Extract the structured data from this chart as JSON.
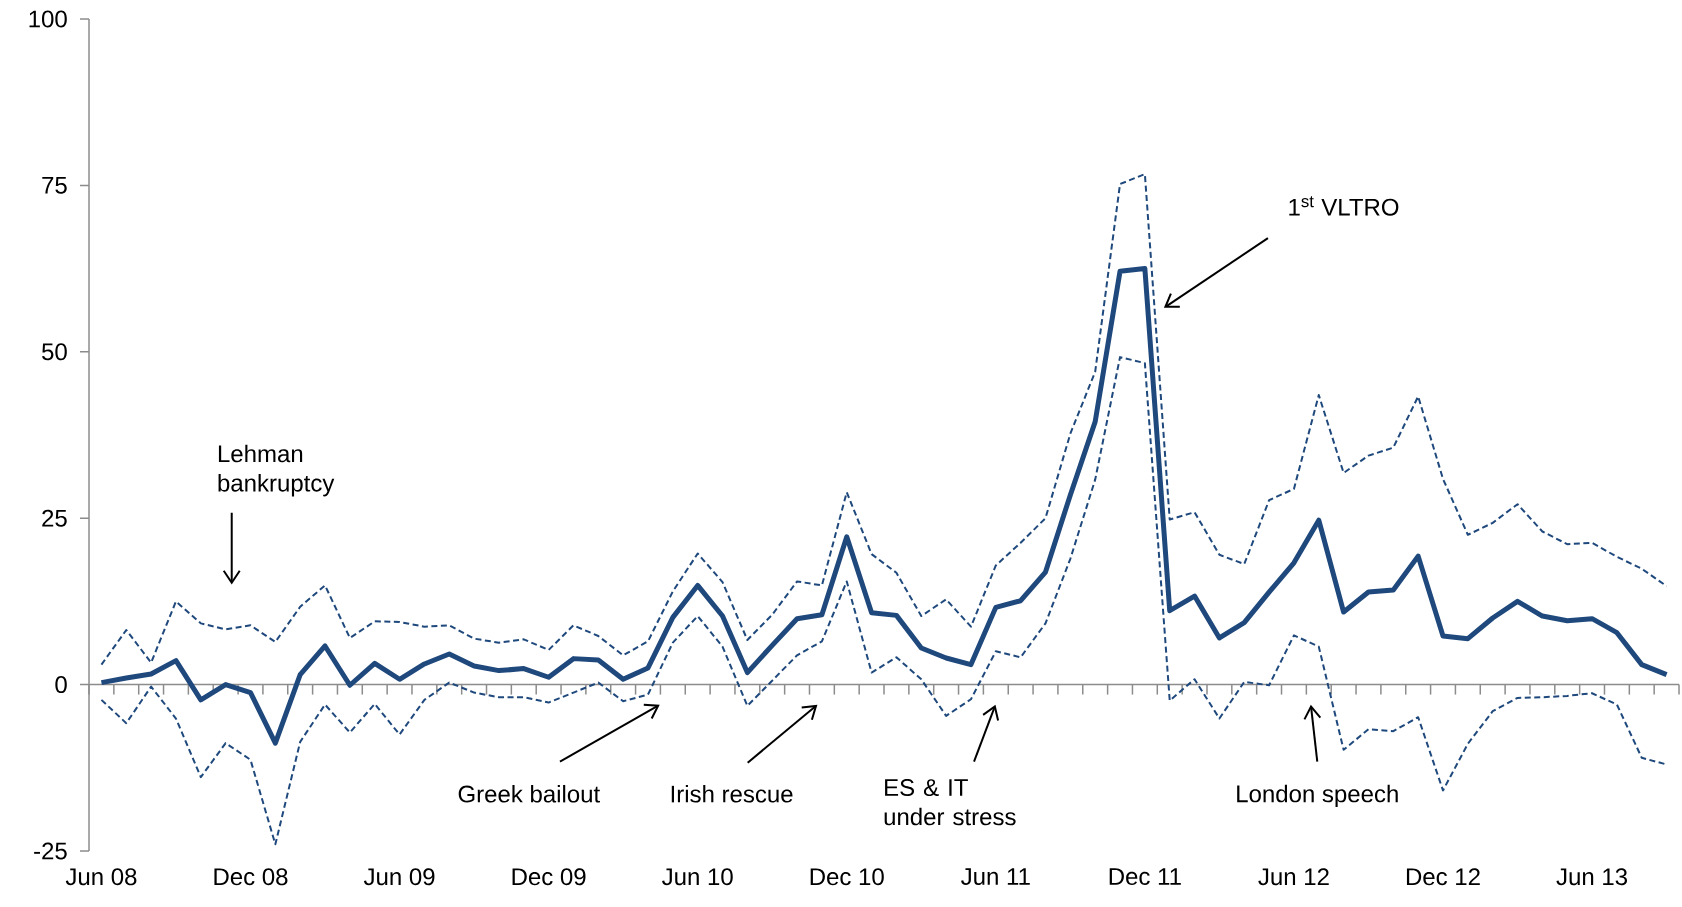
{
  "chart_data": {
    "type": "line",
    "x": [
      "2008-06",
      "2008-07",
      "2008-08",
      "2008-09",
      "2008-10",
      "2008-11",
      "2008-12",
      "2009-01",
      "2009-02",
      "2009-03",
      "2009-04",
      "2009-05",
      "2009-06",
      "2009-07",
      "2009-08",
      "2009-09",
      "2009-10",
      "2009-11",
      "2009-12",
      "2010-01",
      "2010-02",
      "2010-03",
      "2010-04",
      "2010-05",
      "2010-06",
      "2010-07",
      "2010-08",
      "2010-09",
      "2010-10",
      "2010-11",
      "2010-12",
      "2011-01",
      "2011-02",
      "2011-03",
      "2011-04",
      "2011-05",
      "2011-06",
      "2011-07",
      "2011-08",
      "2011-09",
      "2011-10",
      "2011-11",
      "2011-12",
      "2012-01",
      "2012-02",
      "2012-03",
      "2012-04",
      "2012-05",
      "2012-06",
      "2012-07",
      "2012-08",
      "2012-09",
      "2012-10",
      "2012-11",
      "2012-12",
      "2013-01",
      "2013-02",
      "2013-03",
      "2013-04",
      "2013-05",
      "2013-06",
      "2013-07",
      "2013-08",
      "2013-09"
    ],
    "series": [
      {
        "color": "#1f497d",
        "line_style": "dashed",
        "values": [
          3,
          8.2,
          3.3,
          12.5,
          9.2,
          8.3,
          8.9,
          6.4,
          11.7,
          14.9,
          7,
          9.5,
          9.4,
          8.7,
          8.9,
          6.9,
          6.3,
          6.8,
          5.2,
          8.9,
          7.3,
          4.4,
          6.5,
          14,
          19.7,
          15.4,
          6.7,
          10.5,
          15.5,
          14.9,
          28.9,
          19.6,
          16.8,
          10.3,
          12.8,
          8.7,
          17.9,
          21.3,
          25,
          37.7,
          47,
          75.2,
          76.7,
          24.8,
          25.9,
          19.5,
          18.1,
          27.7,
          29.4,
          43.5,
          31.8,
          34.4,
          35.6,
          43.3,
          30.9,
          22.5,
          24.3,
          27.1,
          23,
          21.1,
          21.3,
          19.2,
          17.4,
          14.8
        ]
      },
      {
        "color": "#1f497d",
        "line_style": "dashed",
        "values": [
          -2.3,
          -5.8,
          -0.3,
          -5.1,
          -13.9,
          -8.8,
          -11.3,
          -24,
          -8.6,
          -3,
          -7.2,
          -2.9,
          -7.5,
          -2.3,
          0.3,
          -1.2,
          -1.9,
          -1.9,
          -2.7,
          -1.2,
          0.3,
          -2.5,
          -1.5,
          6.3,
          10.3,
          5.7,
          -3.2,
          0.6,
          4.4,
          6.5,
          15.5,
          1.8,
          4.1,
          0.8,
          -4.7,
          -2.2,
          5,
          4.1,
          9.2,
          18.9,
          30.8,
          49.2,
          48.3,
          -2.4,
          0.8,
          -5.1,
          0.4,
          -0.1,
          7.4,
          5.7,
          -9.8,
          -6.7,
          -7,
          -4.9,
          -15.9,
          -8.9,
          -4,
          -2,
          -1.9,
          -1.7,
          -1.3,
          -3,
          -11,
          -12
        ]
      },
      {
        "color": "#1f497d",
        "line_style": "solid",
        "values": [
          0.3,
          1,
          1.6,
          3.6,
          -2.3,
          0,
          -1.2,
          -8.8,
          1.5,
          5.8,
          -0.1,
          3.2,
          0.8,
          3.1,
          4.6,
          2.8,
          2.1,
          2.4,
          1.1,
          3.9,
          3.7,
          0.8,
          2.5,
          10.1,
          14.9,
          10.3,
          1.8,
          5.9,
          9.9,
          10.5,
          22.2,
          10.8,
          10.4,
          5.5,
          4,
          3,
          11.6,
          12.6,
          16.9,
          28.5,
          39.5,
          62.1,
          62.5,
          11.1,
          13.3,
          7,
          9.3,
          13.9,
          18.3,
          24.7,
          10.9,
          13.9,
          14.2,
          19.3,
          7.3,
          6.9,
          10,
          12.5,
          10.3,
          9.6,
          9.9,
          7.8,
          3,
          1.5
        ]
      }
    ],
    "xlim": [
      "2008-05-16",
      "2013-09-16"
    ],
    "xticks": [
      {
        "value": "2008-06",
        "label": "Jun 08"
      },
      {
        "value": "2008-12",
        "label": "Dec 08"
      },
      {
        "value": "2009-06",
        "label": "Jun 09"
      },
      {
        "value": "2009-12",
        "label": "Dec 09"
      },
      {
        "value": "2010-06",
        "label": "Jun 10"
      },
      {
        "value": "2010-12",
        "label": "Dec 10"
      },
      {
        "value": "2011-06",
        "label": "Jun 11"
      },
      {
        "value": "2011-12",
        "label": "Dec 11"
      },
      {
        "value": "2012-06",
        "label": "Jun 12"
      },
      {
        "value": "2012-12",
        "label": "Dec 12"
      },
      {
        "value": "2013-06",
        "label": "Jun 13"
      }
    ],
    "ylim": [
      -25,
      100
    ],
    "yticks": [
      -25,
      0,
      25,
      50,
      75,
      100
    ],
    "annotations": [
      "Lehman bankruptcy",
      "Greek bailout",
      "Irish rescue",
      "ES & IT under stress",
      "London speech",
      "1$^{st}$ VLTRO"
    ]
  }
}
